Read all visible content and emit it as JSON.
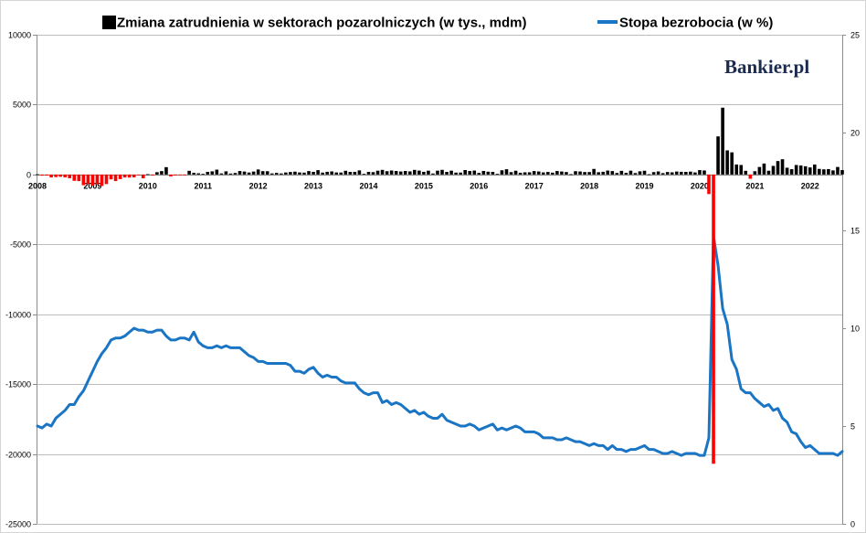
{
  "logo": {
    "text": "Bankier.pl"
  },
  "chart_data": {
    "type": "bar",
    "legend": "top",
    "grid": true,
    "ylim": [
      -25000,
      10000
    ],
    "y2lim": [
      0,
      25
    ],
    "y_tick_labels": [
      "10000",
      "5000",
      "0",
      "-5000",
      "-10000",
      "-15000",
      "-20000",
      "-25000"
    ],
    "y2_tick_labels": [
      "25",
      "20",
      "15",
      "10",
      "5",
      "0"
    ],
    "x_tick_labels": [
      "2008",
      "2009",
      "2010",
      "2011",
      "2012",
      "2013",
      "2014",
      "2015",
      "2016",
      "2017",
      "2018",
      "2019",
      "2020",
      "2021",
      "2022"
    ],
    "x": [
      "2008-01",
      "2008-02",
      "2008-03",
      "2008-04",
      "2008-05",
      "2008-06",
      "2008-07",
      "2008-08",
      "2008-09",
      "2008-10",
      "2008-11",
      "2008-12",
      "2009-01",
      "2009-02",
      "2009-03",
      "2009-04",
      "2009-05",
      "2009-06",
      "2009-07",
      "2009-08",
      "2009-09",
      "2009-10",
      "2009-11",
      "2009-12",
      "2010-01",
      "2010-02",
      "2010-03",
      "2010-04",
      "2010-05",
      "2010-06",
      "2010-07",
      "2010-08",
      "2010-09",
      "2010-10",
      "2010-11",
      "2010-12",
      "2011-01",
      "2011-02",
      "2011-03",
      "2011-04",
      "2011-05",
      "2011-06",
      "2011-07",
      "2011-08",
      "2011-09",
      "2011-10",
      "2011-11",
      "2011-12",
      "2012-01",
      "2012-02",
      "2012-03",
      "2012-04",
      "2012-05",
      "2012-06",
      "2012-07",
      "2012-08",
      "2012-09",
      "2012-10",
      "2012-11",
      "2012-12",
      "2013-01",
      "2013-02",
      "2013-03",
      "2013-04",
      "2013-05",
      "2013-06",
      "2013-07",
      "2013-08",
      "2013-09",
      "2013-10",
      "2013-11",
      "2013-12",
      "2014-01",
      "2014-02",
      "2014-03",
      "2014-04",
      "2014-05",
      "2014-06",
      "2014-07",
      "2014-08",
      "2014-09",
      "2014-10",
      "2014-11",
      "2014-12",
      "2015-01",
      "2015-02",
      "2015-03",
      "2015-04",
      "2015-05",
      "2015-06",
      "2015-07",
      "2015-08",
      "2015-09",
      "2015-10",
      "2015-11",
      "2015-12",
      "2016-01",
      "2016-02",
      "2016-03",
      "2016-04",
      "2016-05",
      "2016-06",
      "2016-07",
      "2016-08",
      "2016-09",
      "2016-10",
      "2016-11",
      "2016-12",
      "2017-01",
      "2017-02",
      "2017-03",
      "2017-04",
      "2017-05",
      "2017-06",
      "2017-07",
      "2017-08",
      "2017-09",
      "2017-10",
      "2017-11",
      "2017-12",
      "2018-01",
      "2018-02",
      "2018-03",
      "2018-04",
      "2018-05",
      "2018-06",
      "2018-07",
      "2018-08",
      "2018-09",
      "2018-10",
      "2018-11",
      "2018-12",
      "2019-01",
      "2019-02",
      "2019-03",
      "2019-04",
      "2019-05",
      "2019-06",
      "2019-07",
      "2019-08",
      "2019-09",
      "2019-10",
      "2019-11",
      "2019-12",
      "2020-01",
      "2020-02",
      "2020-03",
      "2020-04",
      "2020-05",
      "2020-06",
      "2020-07",
      "2020-08",
      "2020-09",
      "2020-10",
      "2020-11",
      "2020-12",
      "2021-01",
      "2021-02",
      "2021-03",
      "2021-04",
      "2021-05",
      "2021-06",
      "2021-07",
      "2021-08",
      "2021-09",
      "2021-10",
      "2021-11",
      "2021-12",
      "2022-01",
      "2022-02",
      "2022-03",
      "2022-04",
      "2022-05",
      "2022-06",
      "2022-07",
      "2022-08"
    ],
    "series": [
      {
        "name": "Zmiana zatrudnienia w sektorach pozarolniczych (w tys., mdm)",
        "type": "bar",
        "axis": "left",
        "color_positive": "#000000",
        "color_negative": "#ff0000",
        "values": [
          17,
          -84,
          -78,
          -210,
          -185,
          -165,
          -209,
          -266,
          -452,
          -473,
          -769,
          -695,
          -791,
          -703,
          -823,
          -687,
          -349,
          -471,
          -329,
          -213,
          -220,
          -204,
          -2,
          -275,
          23,
          -68,
          164,
          243,
          524,
          -137,
          -68,
          -36,
          -52,
          262,
          119,
          87,
          43,
          189,
          225,
          346,
          77,
          225,
          69,
          110,
          248,
          209,
          141,
          209,
          358,
          237,
          233,
          78,
          115,
          76,
          143,
          177,
          203,
          146,
          132,
          244,
          190,
          311,
          135,
          192,
          218,
          146,
          140,
          266,
          185,
          189,
          293,
          45,
          187,
          168,
          272,
          330,
          236,
          286,
          249,
          213,
          250,
          221,
          329,
          278,
          190,
          271,
          71,
          274,
          333,
          184,
          273,
          134,
          136,
          317,
          246,
          281,
          113,
          253,
          200,
          186,
          43,
          300,
          375,
          167,
          269,
          125,
          153,
          156,
          245,
          215,
          147,
          179,
          131,
          248,
          213,
          175,
          23,
          235,
          216,
          174,
          174,
          398,
          161,
          194,
          281,
          245,
          109,
          261,
          118,
          272,
          103,
          227,
          268,
          17,
          170,
          218,
          99,
          177,
          153,
          211,
          192,
          187,
          206,
          147,
          315,
          289,
          -1400,
          -20700,
          2725,
          4781,
          1726,
          1583,
          716,
          680,
          263,
          -306,
          233,
          536,
          785,
          269,
          614,
          962,
          1091,
          483,
          379,
          677,
          647,
          588,
          504,
          714,
          398,
          368,
          386,
          293,
          537,
          315
        ]
      },
      {
        "name": "Stopa bezrobocia (w %)",
        "type": "line",
        "axis": "right",
        "color": "#1a75c4",
        "values": [
          5.0,
          4.9,
          5.1,
          5.0,
          5.4,
          5.6,
          5.8,
          6.1,
          6.1,
          6.5,
          6.8,
          7.3,
          7.8,
          8.3,
          8.7,
          9.0,
          9.4,
          9.5,
          9.5,
          9.6,
          9.8,
          10.0,
          9.9,
          9.9,
          9.8,
          9.8,
          9.9,
          9.9,
          9.6,
          9.4,
          9.4,
          9.5,
          9.5,
          9.4,
          9.8,
          9.3,
          9.1,
          9.0,
          9.0,
          9.1,
          9.0,
          9.1,
          9.0,
          9.0,
          9.0,
          8.8,
          8.6,
          8.5,
          8.3,
          8.3,
          8.2,
          8.2,
          8.2,
          8.2,
          8.2,
          8.1,
          7.8,
          7.8,
          7.7,
          7.9,
          8.0,
          7.7,
          7.5,
          7.6,
          7.5,
          7.5,
          7.3,
          7.2,
          7.2,
          7.2,
          6.9,
          6.7,
          6.6,
          6.7,
          6.7,
          6.2,
          6.3,
          6.1,
          6.2,
          6.1,
          5.9,
          5.7,
          5.8,
          5.6,
          5.7,
          5.5,
          5.4,
          5.4,
          5.6,
          5.3,
          5.2,
          5.1,
          5.0,
          5.0,
          5.1,
          5.0,
          4.8,
          4.9,
          5.0,
          5.1,
          4.8,
          4.9,
          4.8,
          4.9,
          5.0,
          4.9,
          4.7,
          4.7,
          4.7,
          4.6,
          4.4,
          4.4,
          4.4,
          4.3,
          4.3,
          4.4,
          4.3,
          4.2,
          4.2,
          4.1,
          4.0,
          4.1,
          4.0,
          4.0,
          3.8,
          4.0,
          3.8,
          3.8,
          3.7,
          3.8,
          3.8,
          3.9,
          4.0,
          3.8,
          3.8,
          3.7,
          3.6,
          3.6,
          3.7,
          3.6,
          3.5,
          3.6,
          3.6,
          3.6,
          3.5,
          3.5,
          4.4,
          14.7,
          13.2,
          11.0,
          10.2,
          8.4,
          7.9,
          6.9,
          6.7,
          6.7,
          6.4,
          6.2,
          6.0,
          6.1,
          5.8,
          5.9,
          5.4,
          5.2,
          4.7,
          4.6,
          4.2,
          3.9,
          4.0,
          3.8,
          3.6,
          3.6,
          3.6,
          3.6,
          3.5,
          3.7
        ]
      }
    ]
  }
}
